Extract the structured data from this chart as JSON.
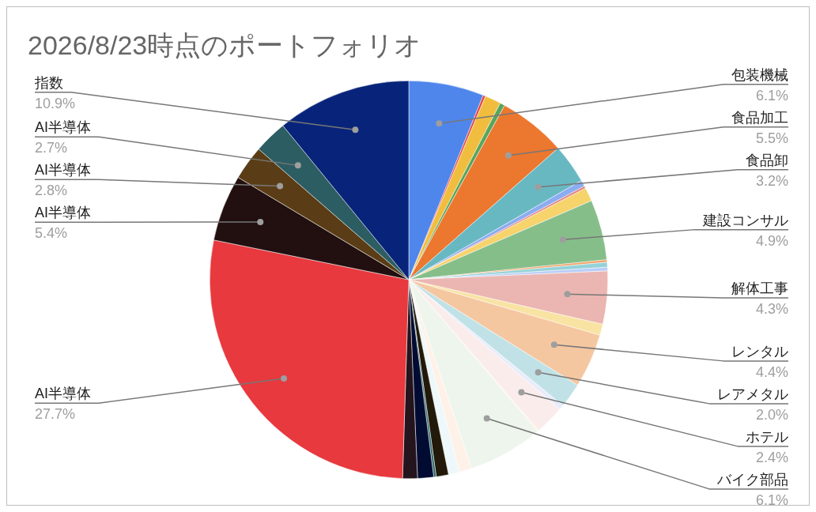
{
  "chart_data": {
    "type": "pie",
    "title": "2026/8/23時点のポートフォリオ",
    "legend": false,
    "categories": [
      "包装機械",
      null,
      null,
      null,
      "食品加工",
      "食品卸",
      null,
      null,
      null,
      "建設コンサル",
      null,
      null,
      null,
      "解体工事",
      null,
      "レンタル",
      "レアメタル",
      null,
      "ホテル",
      null,
      "バイク部品",
      null,
      null,
      null,
      null,
      null,
      null,
      "AI半導体",
      "AI半導体",
      "AI半導体",
      "AI半導体",
      "指数"
    ],
    "values": [
      6.1,
      0.2,
      1.3,
      0.4,
      5.5,
      3.2,
      0.5,
      0.2,
      1.1,
      4.9,
      0.2,
      0.4,
      0.3,
      4.3,
      0.9,
      4.4,
      2.0,
      0.4,
      2.4,
      0.1,
      6.1,
      1.0,
      0.9,
      1.0,
      0.2,
      1.3,
      1.2,
      27.7,
      5.4,
      2.8,
      2.7,
      10.9
    ],
    "value_labels": [
      "6.1%",
      null,
      null,
      null,
      "5.5%",
      "3.2%",
      null,
      null,
      null,
      "4.9%",
      null,
      null,
      null,
      "4.3%",
      null,
      "4.4%",
      "2.0%",
      null,
      "2.4%",
      null,
      "6.1%",
      null,
      null,
      null,
      null,
      null,
      null,
      "27.7%",
      "5.4%",
      "2.8%",
      "2.7%",
      "10.9%"
    ],
    "colors": [
      "#4f86ec",
      "#e8433f",
      "#f1bd3f",
      "#58a55c",
      "#ec772e",
      "#68b8c2",
      "#8bacf1",
      "#e38983",
      "#f6d36b",
      "#86be8a",
      "#f0a468",
      "#95d2d8",
      "#b9cdf7",
      "#ebb6b1",
      "#f8e3a3",
      "#f5c7a0",
      "#c0e2e6",
      "#e8ecfb",
      "#fbecec",
      "#fdf6dc",
      "#edf5ec",
      "#fef1e8",
      "#eef7f9",
      "#22190a",
      "#2d6a6a",
      "#020c33",
      "#23141e",
      "#e7393e",
      "#220f0f",
      "#5a3d16",
      "#2c5d62",
      "#08247a"
    ]
  }
}
